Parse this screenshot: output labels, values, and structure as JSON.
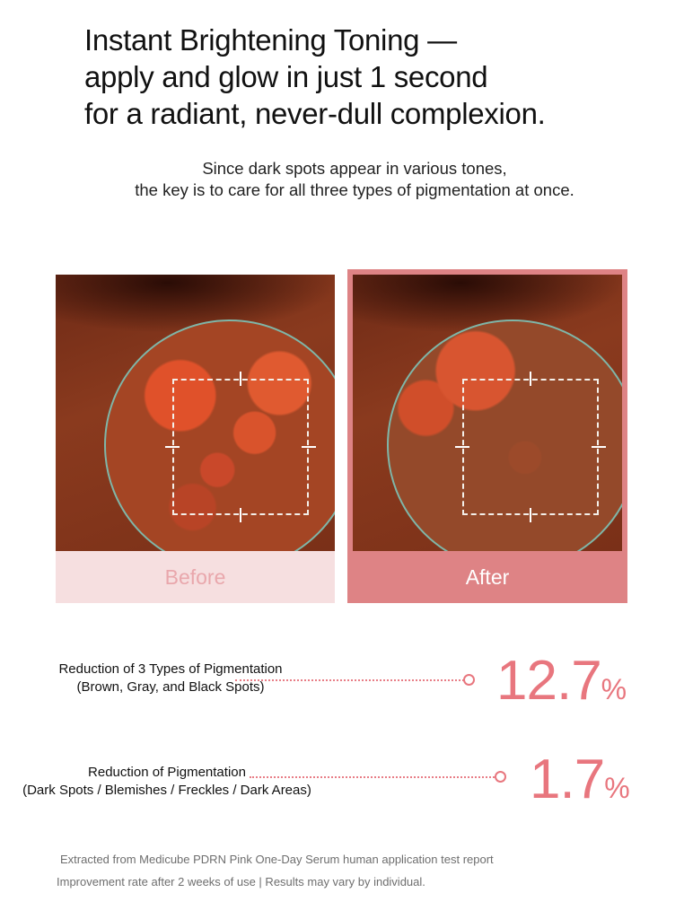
{
  "headline": [
    "Instant Brightening Toning —",
    "apply and glow in just 1 second",
    "for a radiant, never-dull complexion."
  ],
  "subtitle": [
    "Since dark spots appear in various tones,",
    "the key is to care for all three types of pigmentation at once."
  ],
  "comparison": {
    "before_label": "Before",
    "after_label": "After"
  },
  "stats": [
    {
      "label_line1": "Reduction of 3 Types of Pigmentation",
      "label_line2": "(Brown, Gray, and Black Spots)",
      "value": "12.7",
      "unit": "%"
    },
    {
      "label_line1": "Reduction of Pigmentation",
      "label_line2": "(Dark Spots / Blemishes / Freckles / Dark Areas)",
      "value": "1.7",
      "unit": "%"
    }
  ],
  "footnote": [
    "Extracted from Medicube PDRN Pink One-Day Serum human application test report",
    "Improvement rate after 2 weeks of use | Results may vary by individual."
  ],
  "colors": {
    "accent": "#e8767e",
    "before_bg": "#f6dfe0",
    "after_bg": "#de8385"
  }
}
